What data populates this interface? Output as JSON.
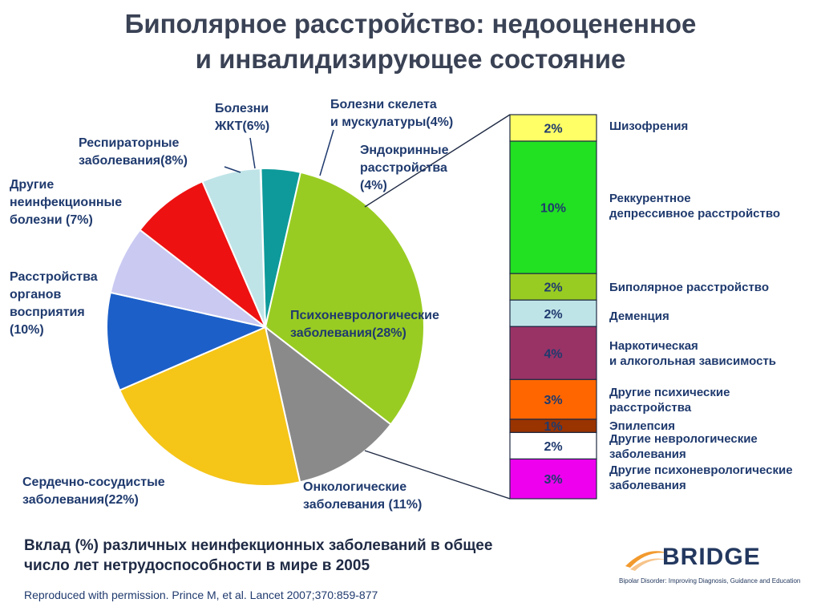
{
  "title_line1": "Биполярное расстройство: недооцененное",
  "title_line2": "и инвалидизирующее состояние",
  "chart_data": [
    {
      "type": "pie",
      "slices": [
        {
          "label": [
            "Болезни скелета",
            "и мускулатуры(4%)"
          ],
          "value": 4,
          "color": "#2e3a99"
        },
        {
          "label": [
            "Эндокринные",
            "расстройства",
            "(4%)"
          ],
          "value": 4,
          "color": "#0e9a9a"
        },
        {
          "label": [
            "Психоневрологические",
            "заболевания(28%)"
          ],
          "value": 28,
          "color": "#99cc22"
        },
        {
          "label": [
            "Онкологические",
            "заболевания (11%)"
          ],
          "value": 11,
          "color": "#8a8a8a"
        },
        {
          "label": [
            "Сердечно-сосудистые",
            "заболевания(22%)"
          ],
          "value": 22,
          "color": "#f5c518"
        },
        {
          "label": [
            "Расстройства",
            "органов",
            "восприятия",
            "(10%)"
          ],
          "value": 10,
          "color": "#1c5fc8"
        },
        {
          "label": [
            "Другие",
            "неинфекционные",
            "болезни (7%)"
          ],
          "value": 7,
          "color": "#c9c9f2"
        },
        {
          "label": [
            "Респираторные",
            "заболевания(8%)"
          ],
          "value": 8,
          "color": "#ee1111"
        },
        {
          "label": [
            "Болезни",
            "ЖКТ(6%)"
          ],
          "value": 6,
          "color": "#bfe4e8"
        }
      ]
    },
    {
      "type": "bar",
      "stacked": true,
      "segments": [
        {
          "value_label": "2%",
          "value": 2,
          "color": "#ffff66",
          "label": [
            "Шизофрения"
          ]
        },
        {
          "value_label": "10%",
          "value": 10,
          "color": "#22e022",
          "label": [
            "Реккурентное",
            "депрессивное расстройство"
          ]
        },
        {
          "value_label": "2%",
          "value": 2,
          "color": "#99cc22",
          "label": [
            "Биполярное расстройство"
          ]
        },
        {
          "value_label": "2%",
          "value": 2,
          "color": "#bfe4e8",
          "label": [
            "Деменция"
          ]
        },
        {
          "value_label": "4%",
          "value": 4,
          "color": "#993366",
          "label": [
            "Наркотическая",
            "и алкогольная зависимость"
          ]
        },
        {
          "value_label": "3%",
          "value": 3,
          "color": "#ff6600",
          "label": [
            "Другие психические",
            "расстройства"
          ]
        },
        {
          "value_label": "1%",
          "value": 1,
          "color": "#993300",
          "label": [
            "Эпилепсия"
          ]
        },
        {
          "value_label": "2%",
          "value": 2,
          "color": "#ffffff",
          "label": [
            "Другие неврологические",
            "заболевания"
          ]
        },
        {
          "value_label": "3%",
          "value": 3,
          "color": "#ee00ee",
          "label": [
            "Другие психоневрологические",
            "заболевания"
          ]
        }
      ]
    }
  ],
  "caption_line1": "Вклад (%) различных неинфекционных заболеваний в общее",
  "caption_line2": "число лет нетрудоспособности в мире в 2005",
  "source": "Reproduced with permission. Prince M, et al. Lancet 2007;370:859-877",
  "logo": {
    "name": "BRIDGE",
    "tagline": "Bipolar Disorder: Improving Diagnosis, Guidance and Education"
  }
}
